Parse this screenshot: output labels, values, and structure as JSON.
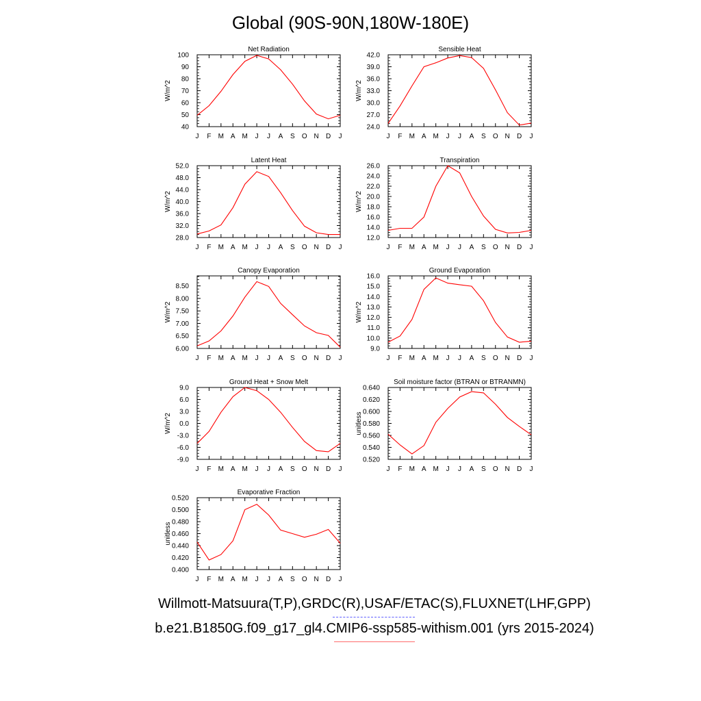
{
  "page": {
    "title": "Global (90S-90N,180W-180E)",
    "footer_line1": "Willmott-Matsuura(T,P),GRDC(R),USAF/ETAC(S),FLUXNET(LHF,GPP)",
    "footer_line2": "b.e21.B1850G.f09_g17_gl4.CMIP6-ssp585-withism.001 (yrs 2015-2024)"
  },
  "colors": {
    "line": "#ff0000",
    "axis": "#000000",
    "footer_dash_blue": "#5b5bff",
    "footer_underline_red": "#ff6b6b"
  },
  "chart_data": [
    {
      "type": "line",
      "title": "Net Radiation",
      "ylabel": "W/m^2",
      "categories": [
        "J",
        "F",
        "M",
        "A",
        "M",
        "J",
        "J",
        "A",
        "S",
        "O",
        "N",
        "D",
        "J"
      ],
      "ylim": [
        40,
        100
      ],
      "yticks": [
        "40",
        "50",
        "60",
        "70",
        "80",
        "90",
        "100"
      ],
      "grid": false,
      "series": [
        {
          "values": [
            49.5,
            57.5,
            69.5,
            83.5,
            94.5,
            99.5,
            96.5,
            87.5,
            75.5,
            61.5,
            50.5,
            46.5,
            49.5
          ]
        }
      ]
    },
    {
      "type": "line",
      "title": "Sensible Heat",
      "ylabel": "W/m^2",
      "categories": [
        "J",
        "F",
        "M",
        "A",
        "M",
        "J",
        "J",
        "A",
        "S",
        "O",
        "N",
        "D",
        "J"
      ],
      "ylim": [
        24,
        42
      ],
      "yticks": [
        "24.0",
        "27.0",
        "30.0",
        "33.0",
        "36.0",
        "39.0",
        "42.0"
      ],
      "grid": false,
      "series": [
        {
          "values": [
            24.8,
            29.2,
            34.2,
            39.0,
            40.0,
            41.2,
            41.8,
            41.3,
            38.6,
            33.2,
            27.5,
            24.4,
            24.9
          ]
        }
      ]
    },
    {
      "type": "line",
      "title": "Latent Heat",
      "ylabel": "W/m^2",
      "categories": [
        "J",
        "F",
        "M",
        "A",
        "M",
        "J",
        "J",
        "A",
        "S",
        "O",
        "N",
        "D",
        "J"
      ],
      "ylim": [
        28,
        52
      ],
      "yticks": [
        "28.0",
        "32.0",
        "36.0",
        "40.0",
        "44.0",
        "48.0",
        "52.0"
      ],
      "grid": false,
      "series": [
        {
          "values": [
            29.2,
            30.2,
            32.2,
            38.0,
            45.8,
            50.0,
            48.4,
            43.0,
            37.0,
            31.8,
            29.6,
            29.0,
            29.0
          ]
        }
      ]
    },
    {
      "type": "line",
      "title": "Transpiration",
      "ylabel": "W/m^2",
      "categories": [
        "J",
        "F",
        "M",
        "A",
        "M",
        "J",
        "J",
        "A",
        "S",
        "O",
        "N",
        "D",
        "J"
      ],
      "ylim": [
        12,
        26
      ],
      "yticks": [
        "12.0",
        "14.0",
        "16.0",
        "18.0",
        "20.0",
        "22.0",
        "24.0",
        "26.0"
      ],
      "grid": false,
      "series": [
        {
          "values": [
            13.4,
            13.8,
            13.8,
            16.0,
            22.0,
            26.0,
            24.6,
            20.0,
            16.2,
            13.6,
            12.9,
            13.0,
            13.4
          ]
        }
      ]
    },
    {
      "type": "line",
      "title": "Canopy Evaporation",
      "ylabel": "W/m^2",
      "categories": [
        "J",
        "F",
        "M",
        "A",
        "M",
        "J",
        "J",
        "A",
        "S",
        "O",
        "N",
        "D",
        "J"
      ],
      "ylim": [
        6.0,
        8.9
      ],
      "yticks": [
        "6.00",
        "6.50",
        "7.00",
        "7.50",
        "8.00",
        "8.50"
      ],
      "grid": false,
      "series": [
        {
          "values": [
            6.1,
            6.3,
            6.7,
            7.3,
            8.05,
            8.67,
            8.48,
            7.8,
            7.35,
            6.9,
            6.63,
            6.52,
            6.05
          ]
        }
      ]
    },
    {
      "type": "line",
      "title": "Ground Evaporation",
      "ylabel": "W/m^2",
      "categories": [
        "J",
        "F",
        "M",
        "A",
        "M",
        "J",
        "J",
        "A",
        "S",
        "O",
        "N",
        "D",
        "J"
      ],
      "ylim": [
        9,
        16
      ],
      "yticks": [
        "9.0",
        "10.0",
        "11.0",
        "12.0",
        "13.0",
        "14.0",
        "15.0",
        "16.0"
      ],
      "grid": false,
      "series": [
        {
          "values": [
            9.6,
            10.2,
            11.8,
            14.7,
            15.8,
            15.3,
            15.15,
            15.0,
            13.6,
            11.5,
            10.1,
            9.6,
            9.7
          ]
        }
      ]
    },
    {
      "type": "line",
      "title": "Ground Heat + Snow Melt",
      "ylabel": "W/m^2",
      "categories": [
        "J",
        "F",
        "M",
        "A",
        "M",
        "J",
        "J",
        "A",
        "S",
        "O",
        "N",
        "D",
        "J"
      ],
      "ylim": [
        -9,
        9
      ],
      "yticks": [
        "-9.0",
        "-6.0",
        "-3.0",
        "0.0",
        "3.0",
        "6.0",
        "9.0"
      ],
      "grid": false,
      "series": [
        {
          "values": [
            -5.0,
            -2.0,
            2.8,
            6.7,
            9.0,
            8.2,
            6.0,
            2.8,
            -1.0,
            -4.5,
            -6.8,
            -7.1,
            -5.0
          ]
        }
      ]
    },
    {
      "type": "line",
      "title": "Soil moisture factor (BTRAN or BTRANMN)",
      "ylabel": "unitless",
      "categories": [
        "J",
        "F",
        "M",
        "A",
        "M",
        "J",
        "J",
        "A",
        "S",
        "O",
        "N",
        "D",
        "J"
      ],
      "ylim": [
        0.52,
        0.64
      ],
      "yticks": [
        "0.520",
        "0.540",
        "0.560",
        "0.580",
        "0.600",
        "0.620",
        "0.640"
      ],
      "grid": false,
      "series": [
        {
          "values": [
            0.562,
            0.544,
            0.529,
            0.543,
            0.582,
            0.605,
            0.624,
            0.633,
            0.631,
            0.612,
            0.59,
            0.575,
            0.561
          ]
        }
      ]
    },
    {
      "type": "line",
      "title": "Evaporative Fraction",
      "ylabel": "unitless",
      "categories": [
        "J",
        "F",
        "M",
        "A",
        "M",
        "J",
        "J",
        "A",
        "S",
        "O",
        "N",
        "D",
        "J"
      ],
      "ylim": [
        0.4,
        0.52
      ],
      "yticks": [
        "0.400",
        "0.420",
        "0.440",
        "0.460",
        "0.480",
        "0.500",
        "0.520"
      ],
      "grid": false,
      "series": [
        {
          "values": [
            0.446,
            0.416,
            0.425,
            0.448,
            0.5,
            0.509,
            0.491,
            0.466,
            0.46,
            0.454,
            0.459,
            0.467,
            0.444
          ]
        }
      ]
    }
  ]
}
